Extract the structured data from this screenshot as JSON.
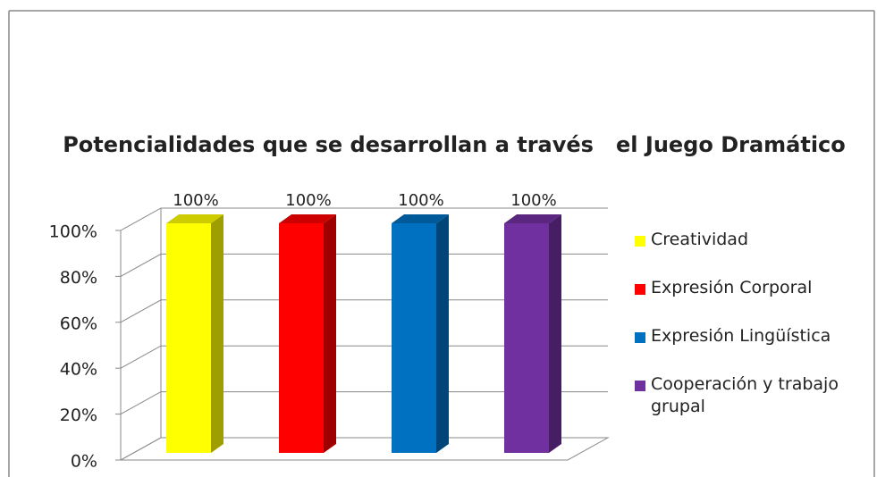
{
  "chart_data": {
    "type": "bar3d",
    "title": "Potencialidades que se desarrollan a través   el Juego Dramático",
    "categories": [
      null
    ],
    "series": [
      {
        "name": "Creatividad",
        "color": "#ffff00",
        "values": [
          100
        ],
        "value_labels": [
          "100%"
        ]
      },
      {
        "name": "Expresión Corporal",
        "color": "#ff0000",
        "values": [
          100
        ],
        "value_labels": [
          "100%"
        ]
      },
      {
        "name": "Expresión Lingüística",
        "color": "#0070c0",
        "values": [
          100
        ],
        "value_labels": [
          "100%"
        ]
      },
      {
        "name": "Cooperación y trabajo grupal",
        "color": "#7030a0",
        "values": [
          100
        ],
        "value_labels": [
          "100%"
        ]
      }
    ],
    "ylim": [
      0,
      100
    ],
    "yticks": [
      {
        "value": 0,
        "label": "0%"
      },
      {
        "value": 20,
        "label": "20%"
      },
      {
        "value": 40,
        "label": "40%"
      },
      {
        "value": 60,
        "label": "60%"
      },
      {
        "value": 80,
        "label": "80%"
      },
      {
        "value": 100,
        "label": "100%"
      }
    ],
    "grid": true,
    "legend": "right"
  }
}
